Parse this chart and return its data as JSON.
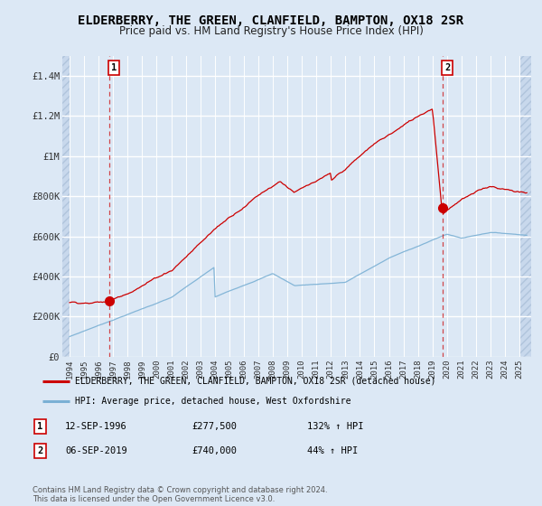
{
  "title": "ELDERBERRY, THE GREEN, CLANFIELD, BAMPTON, OX18 2SR",
  "subtitle": "Price paid vs. HM Land Registry's House Price Index (HPI)",
  "title_fontsize": 10,
  "subtitle_fontsize": 8.5,
  "background_color": "#dce8f5",
  "plot_bg_color": "#dce8f5",
  "red_line_color": "#cc0000",
  "blue_line_color": "#7ab0d4",
  "sale1_year": 1996.71,
  "sale1_price": 277500,
  "sale1_label": "1",
  "sale1_date": "12-SEP-1996",
  "sale1_price_str": "£277,500",
  "sale1_pct": "132% ↑ HPI",
  "sale2_year": 2019.68,
  "sale2_price": 740000,
  "sale2_label": "2",
  "sale2_date": "06-SEP-2019",
  "sale2_price_str": "£740,000",
  "sale2_pct": "44% ↑ HPI",
  "ylim": [
    0,
    1500000
  ],
  "xlim_start": 1993.5,
  "xlim_end": 2025.8,
  "yticks": [
    0,
    200000,
    400000,
    600000,
    800000,
    1000000,
    1200000,
    1400000
  ],
  "ytick_labels": [
    "£0",
    "£200K",
    "£400K",
    "£600K",
    "£800K",
    "£1M",
    "£1.2M",
    "£1.4M"
  ],
  "xticks": [
    1994,
    1995,
    1996,
    1997,
    1998,
    1999,
    2000,
    2001,
    2002,
    2003,
    2004,
    2005,
    2006,
    2007,
    2008,
    2009,
    2010,
    2011,
    2012,
    2013,
    2014,
    2015,
    2016,
    2017,
    2018,
    2019,
    2020,
    2021,
    2022,
    2023,
    2024,
    2025
  ],
  "legend_red_label": "ELDERBERRY, THE GREEN, CLANFIELD, BAMPTON, OX18 2SR (detached house)",
  "legend_blue_label": "HPI: Average price, detached house, West Oxfordshire",
  "footer": "Contains HM Land Registry data © Crown copyright and database right 2024.\nThis data is licensed under the Open Government Licence v3.0."
}
